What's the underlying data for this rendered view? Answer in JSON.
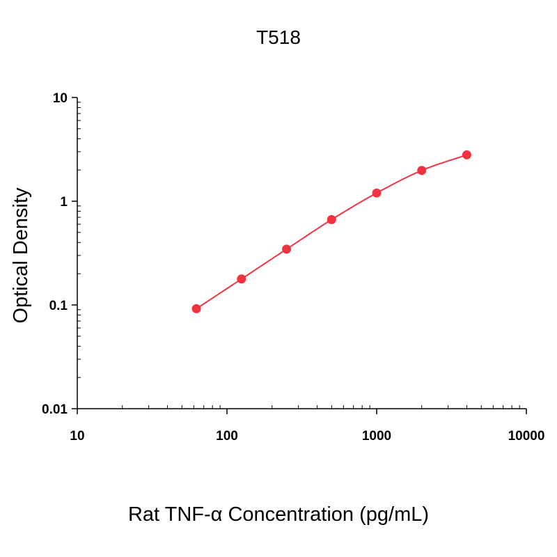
{
  "chart_data": {
    "type": "scatter",
    "title": "T518",
    "xlabel": "Rat TNF-α Concentration (pg/mL)",
    "ylabel": "Optical Density",
    "x_scale": "log",
    "y_scale": "log",
    "xlim": [
      10,
      10000
    ],
    "ylim": [
      0.01,
      10
    ],
    "x_ticks": [
      10,
      100,
      1000,
      10000
    ],
    "x_tick_labels": [
      "10",
      "100",
      "1000",
      "10000"
    ],
    "y_ticks": [
      0.01,
      0.1,
      1,
      10
    ],
    "y_tick_labels": [
      "0.01",
      "0.1",
      "1",
      "10"
    ],
    "grid": false,
    "legend": "none",
    "series": [
      {
        "color": "#f2333f",
        "x": [
          62.5,
          125,
          250,
          500,
          1000,
          2000,
          4000
        ],
        "y": [
          0.092,
          0.178,
          0.345,
          0.665,
          1.2,
          1.98,
          2.8
        ],
        "fit_curve": true
      }
    ]
  }
}
